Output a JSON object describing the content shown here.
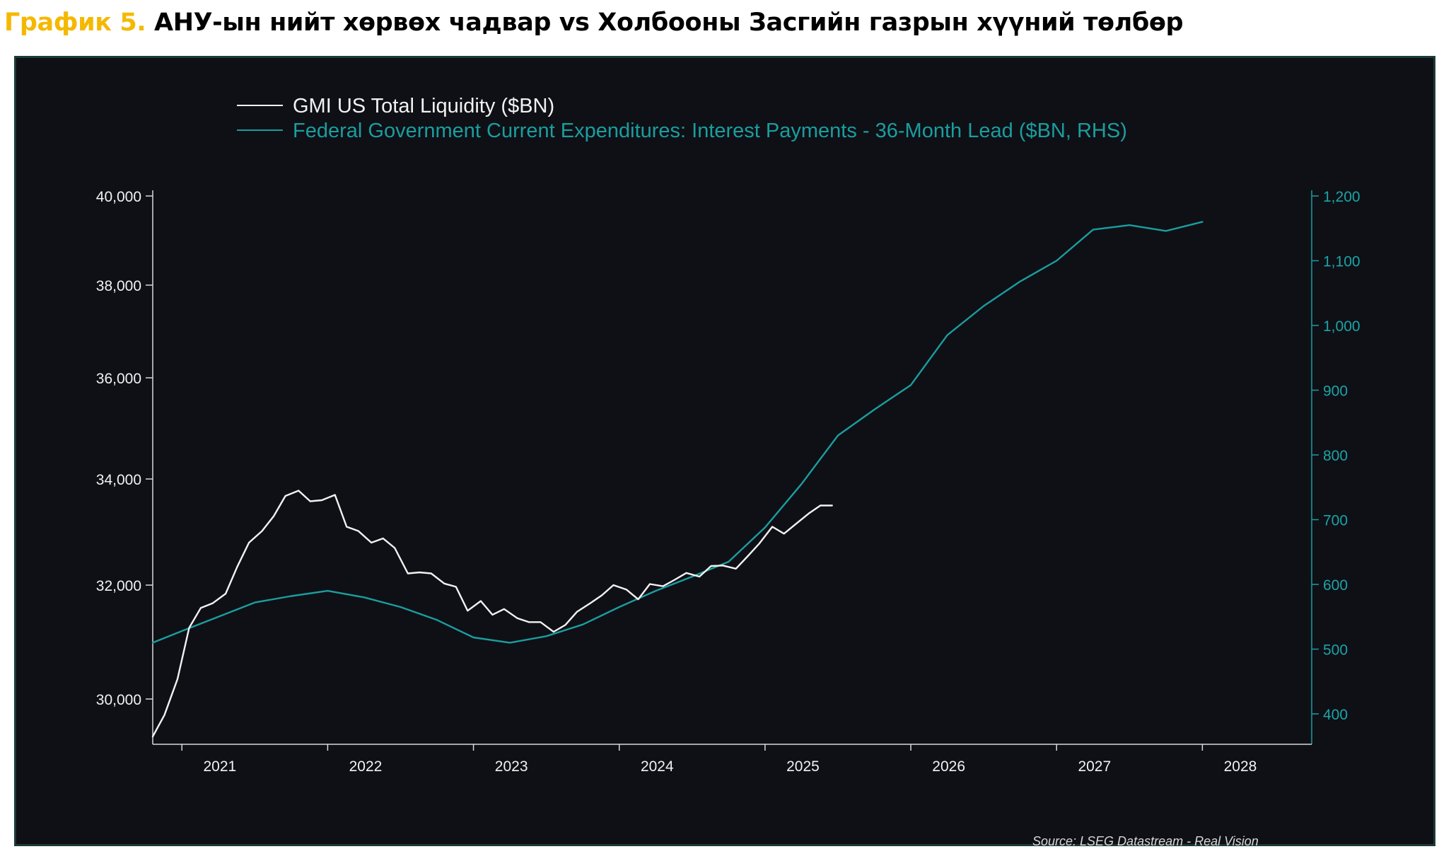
{
  "page": {
    "title_prefix": "График 5.",
    "title_main": " АНУ-ын нийт хөрвөх чадвар vs Холбооны Засгийн газрын хүүний төлбөр"
  },
  "colors": {
    "background": "#0f0f16",
    "liquidity_line": "#f2f2f2",
    "interest_line": "#1a9e9e",
    "left_axis_text": "#f2f2f2",
    "right_axis_text": "#1aa5a5",
    "title_accent": "#f5b800"
  },
  "source": "Source: LSEG Datastream - Real Vision",
  "chart_data": {
    "type": "line",
    "title": "",
    "legend_placement": "top-left",
    "grid": false,
    "x_axis": {
      "unit": "year",
      "range": [
        2020.55,
        2028.5
      ],
      "tick_labels": [
        "2021",
        "2022",
        "2023",
        "2024",
        "2025",
        "2026",
        "2027",
        "2028"
      ],
      "tick_label_positions": [
        2021,
        2022,
        2023,
        2024,
        2025,
        2026,
        2027,
        2028
      ]
    },
    "y_left": {
      "ticks": [
        30000,
        32000,
        34000,
        36000,
        38000,
        40000
      ],
      "tick_labels": [
        "30,000",
        "32,000",
        "34,000",
        "36,000",
        "38,000",
        "40,000"
      ]
    },
    "y_right": {
      "ticks": [
        400,
        500,
        600,
        700,
        800,
        900,
        1000,
        1100,
        1200
      ],
      "tick_labels": [
        "400",
        "500",
        "600",
        "700",
        "800",
        "900",
        "1,000",
        "1,100",
        "1,200"
      ],
      "range": [
        350,
        1200
      ]
    },
    "series": [
      {
        "name": "GMI US Total Liquidity ($BN)",
        "axis": "left",
        "x": [
          2020.55,
          2020.63,
          2020.72,
          2020.8,
          2020.88,
          2020.96,
          2021.05,
          2021.13,
          2021.21,
          2021.3,
          2021.38,
          2021.46,
          2021.55,
          2021.63,
          2021.71,
          2021.8,
          2021.88,
          2021.96,
          2022.05,
          2022.13,
          2022.21,
          2022.3,
          2022.38,
          2022.46,
          2022.55,
          2022.63,
          2022.71,
          2022.8,
          2022.88,
          2022.96,
          2023.05,
          2023.13,
          2023.21,
          2023.3,
          2023.38,
          2023.46,
          2023.55,
          2023.63,
          2023.71,
          2023.8,
          2023.88,
          2023.96,
          2024.05,
          2024.13,
          2024.21,
          2024.3,
          2024.38,
          2024.46,
          2024.55,
          2024.63,
          2024.71,
          2024.8,
          2024.88,
          2024.96,
          2025.05,
          2025.13,
          2025.21
        ],
        "values": [
          29300,
          29700,
          30350,
          31250,
          31600,
          31680,
          31850,
          32350,
          32800,
          33020,
          33300,
          33680,
          33780,
          33580,
          33600,
          33700,
          33100,
          33020,
          32800,
          32880,
          32700,
          32220,
          32240,
          32220,
          32030,
          31970,
          31550,
          31720,
          31480,
          31580,
          31420,
          31350,
          31350,
          31180,
          31300,
          31530,
          31680,
          31820,
          32000,
          31920,
          31750,
          32020,
          31980,
          32100,
          32230,
          32160,
          32360,
          32370,
          32310,
          32540,
          32780,
          33100,
          32970,
          33150,
          33350,
          33500,
          33500
        ]
      },
      {
        "name": "Federal Government Current Expenditures: Interest Payments - 36-Month Lead ($BN, RHS)",
        "axis": "right",
        "x": [
          2020.55,
          2020.75,
          2021.0,
          2021.25,
          2021.5,
          2021.75,
          2022.0,
          2022.25,
          2022.5,
          2022.75,
          2023.0,
          2023.25,
          2023.5,
          2023.75,
          2024.0,
          2024.25,
          2024.5,
          2024.75,
          2025.0,
          2025.25,
          2025.5,
          2025.75,
          2026.0,
          2026.25,
          2026.5,
          2026.75,
          2027.0,
          2027.25,
          2027.5,
          2027.75
        ],
        "values": [
          510,
          528,
          550,
          572,
          582,
          590,
          580,
          565,
          545,
          518,
          510,
          520,
          538,
          565,
          590,
          612,
          635,
          688,
          755,
          830,
          870,
          908,
          985,
          1030,
          1068,
          1100,
          1148,
          1155,
          1146,
          1160
        ]
      }
    ]
  }
}
